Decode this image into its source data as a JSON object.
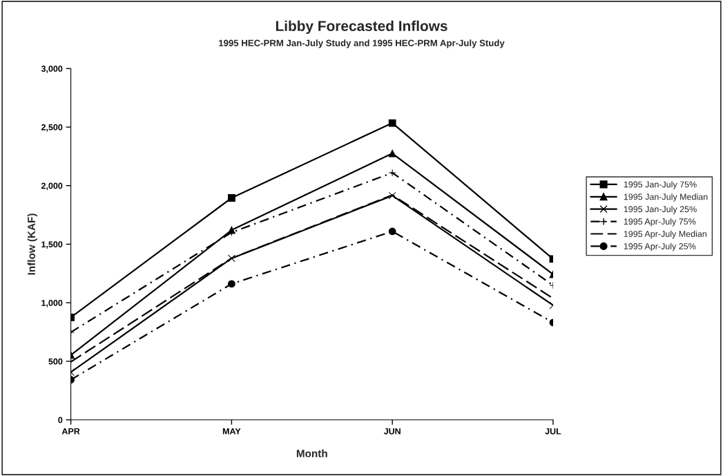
{
  "chart_data": {
    "type": "line",
    "title": "Libby Forecasted Inflows",
    "subtitle": "1995 HEC-PRM Jan-July Study and 1995 HEC-PRM Apr-July Study",
    "xlabel": "Month",
    "ylabel": "Inflow (KAF)",
    "categories": [
      "APR",
      "MAY",
      "JUN",
      "JUL"
    ],
    "series": [
      {
        "name": "1995 Jan-July 75%",
        "color": "#000000",
        "marker": "square",
        "line_style": "solid",
        "values": [
          875,
          1895,
          2535,
          1373
        ]
      },
      {
        "name": "1995 Jan-July Median",
        "color": "#000000",
        "marker": "triangle",
        "line_style": "solid",
        "values": [
          553,
          1620,
          2275,
          1243
        ]
      },
      {
        "name": "1995 Jan-July 25%",
        "color": "#000000",
        "marker": "cross",
        "line_style": "solid",
        "values": [
          407,
          1379,
          1915,
          978
        ]
      },
      {
        "name": "1995 Apr-July 75%",
        "color": "#000000",
        "marker": "plus",
        "line_style": "dashdot",
        "values": [
          748,
          1600,
          2110,
          1149
        ]
      },
      {
        "name": "1995 Apr-July Median",
        "color": "#000000",
        "marker": "none",
        "line_style": "dashed",
        "values": [
          495,
          1380,
          1920,
          1037
        ]
      },
      {
        "name": "1995 Apr-July 25%",
        "color": "#000000",
        "marker": "circle",
        "line_style": "dashdot",
        "values": [
          342,
          1161,
          1609,
          831
        ]
      }
    ],
    "ylim": [
      0,
      3000
    ],
    "yticks": [
      {
        "value": 0,
        "label": "0"
      },
      {
        "value": 500,
        "label": "500"
      },
      {
        "value": 1000,
        "label": "1,000"
      },
      {
        "value": 1500,
        "label": "1,500"
      },
      {
        "value": 2000,
        "label": "2,000"
      },
      {
        "value": 2500,
        "label": "2,500"
      },
      {
        "value": 3000,
        "label": "3,000"
      }
    ],
    "grid": false,
    "legend": "right"
  }
}
